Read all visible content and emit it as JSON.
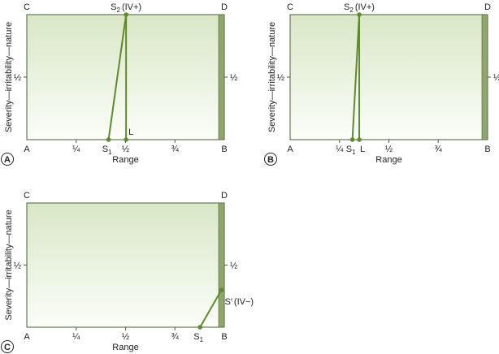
{
  "colors": {
    "box_top": "#d9e7c7",
    "box_bottom": "#fbfdf8",
    "border": "#4d5a3d",
    "limit_bar": "#8fa86a",
    "line": "#5f8a2d",
    "point": "#5f8a2d"
  },
  "panels": [
    {
      "id": "A",
      "marker": "A",
      "corner_labels": {
        "tl": "C",
        "tr": "D",
        "bl": "A",
        "br": "B"
      },
      "x_ticks": [
        {
          "label": "¼",
          "pos": 0.25
        },
        {
          "label": "½",
          "pos": 0.5
        },
        {
          "label": "¾",
          "pos": 0.75
        }
      ],
      "y_tick_label": "½",
      "x_axis_title": "Range",
      "y_axis_title": "Severity—irritability—nature",
      "points": [
        {
          "name": "S1",
          "label_main": "S",
          "label_sub": "1",
          "label_suffix": "",
          "x": 0.42,
          "y": 0
        },
        {
          "name": "S2",
          "label_main": "S",
          "label_sub": "2",
          "label_suffix": "(IV+)",
          "x": 0.51,
          "y": 1
        },
        {
          "name": "L",
          "label_main": "L",
          "label_sub": "",
          "label_suffix": "",
          "x": 0.51,
          "y": 0
        }
      ],
      "lines": [
        [
          "S1",
          "S2"
        ],
        [
          "S2",
          "L"
        ]
      ]
    },
    {
      "id": "B",
      "marker": "B",
      "corner_labels": {
        "tl": "C",
        "tr": "D",
        "bl": "A",
        "br": "B"
      },
      "x_ticks": [
        {
          "label": "¼",
          "pos": 0.25
        },
        {
          "label": "½",
          "pos": 0.5
        },
        {
          "label": "¾",
          "pos": 0.75
        }
      ],
      "y_tick_label": "½",
      "x_axis_title": "Range",
      "y_axis_title": "Severity—irritability—nature",
      "points": [
        {
          "name": "S1",
          "label_main": "S",
          "label_sub": "1",
          "label_suffix": "",
          "x": 0.32,
          "y": 0
        },
        {
          "name": "S2",
          "label_main": "S",
          "label_sub": "2",
          "label_suffix": "(IV+)",
          "x": 0.355,
          "y": 1
        },
        {
          "name": "L",
          "label_main": "L",
          "label_sub": "",
          "label_suffix": "",
          "x": 0.355,
          "y": 0
        }
      ],
      "lines": [
        [
          "S1",
          "S2"
        ],
        [
          "S2",
          "L"
        ]
      ]
    },
    {
      "id": "C",
      "marker": "C",
      "corner_labels": {
        "tl": "C",
        "tr": "D",
        "bl": "A",
        "br": "B"
      },
      "x_ticks": [
        {
          "label": "¼",
          "pos": 0.25
        },
        {
          "label": "½",
          "pos": 0.5
        },
        {
          "label": "¾",
          "pos": 0.75
        }
      ],
      "y_tick_label": "½",
      "x_axis_title": "Range",
      "y_axis_title": "Severity—irritability—nature",
      "points": [
        {
          "name": "S1",
          "label_main": "S",
          "label_sub": "1",
          "label_suffix": "",
          "x": 0.89,
          "y": 0
        },
        {
          "name": "S-prime",
          "label_main": "S′",
          "label_sub": "",
          "label_suffix": "(IV−)",
          "x": 1.0,
          "y": 0.3
        }
      ],
      "lines": [
        [
          "S1",
          "S-prime"
        ]
      ]
    }
  ]
}
